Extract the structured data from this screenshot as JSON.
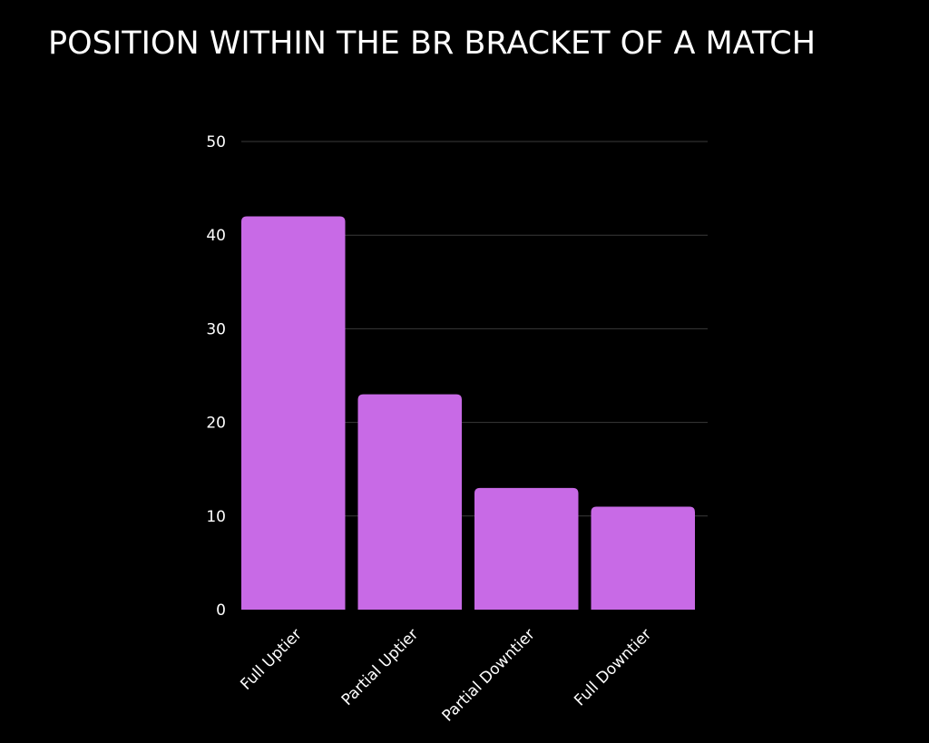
{
  "colors": {
    "background": "#000000",
    "bar": "#c86ae6",
    "gridline": "#3a3a3a",
    "text": "#ffffff"
  },
  "chart_data": {
    "type": "bar",
    "title": "POSITION WITHIN THE BR BRACKET OF A MATCH",
    "xlabel": "",
    "ylabel": "",
    "categories": [
      "Full Uptier",
      "Partial Uptier",
      "Partial Downtier",
      "Full Downtier"
    ],
    "values": [
      42,
      23,
      13,
      11
    ],
    "ylim": [
      0,
      50
    ],
    "yticks": [
      0,
      10,
      20,
      30,
      40,
      50
    ],
    "grid": true,
    "legend": "none"
  }
}
